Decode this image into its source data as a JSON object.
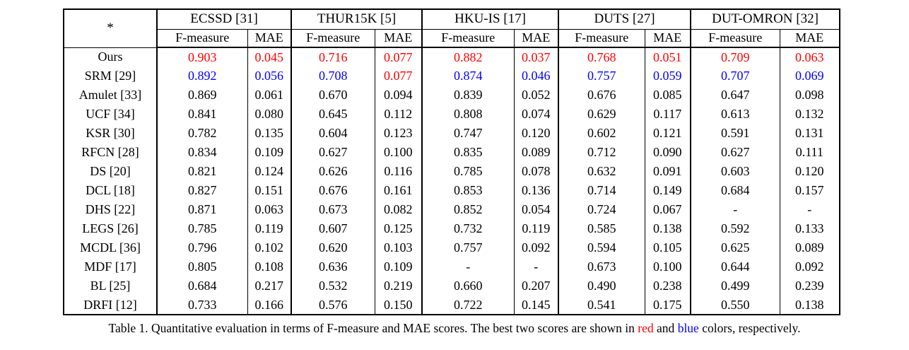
{
  "colors": {
    "best": "#ff0000",
    "second_best": "#0000ff",
    "text": "#000000",
    "background": "#ffffff"
  },
  "table": {
    "corner_label": "*",
    "dataset_headers": [
      "ECSSD [31]",
      "THUR15K [5]",
      "HKU-IS [17]",
      "DUTS [27]",
      "DUT-OMRON [32]"
    ],
    "metric_headers": [
      "F-measure",
      "MAE"
    ],
    "rows": [
      {
        "method": "Ours",
        "values": [
          "0.903",
          "0.045",
          "0.716",
          "0.077",
          "0.882",
          "0.037",
          "0.768",
          "0.051",
          "0.709",
          "0.063"
        ],
        "colors": [
          "red",
          "red",
          "red",
          "red",
          "red",
          "red",
          "red",
          "red",
          "red",
          "red"
        ]
      },
      {
        "method": "SRM [29]",
        "values": [
          "0.892",
          "0.056",
          "0.708",
          "0.077",
          "0.874",
          "0.046",
          "0.757",
          "0.059",
          "0.707",
          "0.069"
        ],
        "colors": [
          "blue",
          "blue",
          "blue",
          "red",
          "blue",
          "blue",
          "blue",
          "blue",
          "blue",
          "blue"
        ]
      },
      {
        "method": "Amulet [33]",
        "values": [
          "0.869",
          "0.061",
          "0.670",
          "0.094",
          "0.839",
          "0.052",
          "0.676",
          "0.085",
          "0.647",
          "0.098"
        ]
      },
      {
        "method": "UCF [34]",
        "values": [
          "0.841",
          "0.080",
          "0.645",
          "0.112",
          "0.808",
          "0.074",
          "0.629",
          "0.117",
          "0.613",
          "0.132"
        ]
      },
      {
        "method": "KSR [30]",
        "values": [
          "0.782",
          "0.135",
          "0.604",
          "0.123",
          "0.747",
          "0.120",
          "0.602",
          "0.121",
          "0.591",
          "0.131"
        ]
      },
      {
        "method": "RFCN [28]",
        "values": [
          "0.834",
          "0.109",
          "0.627",
          "0.100",
          "0.835",
          "0.089",
          "0.712",
          "0.090",
          "0.627",
          "0.111"
        ]
      },
      {
        "method": "DS [20]",
        "values": [
          "0.821",
          "0.124",
          "0.626",
          "0.116",
          "0.785",
          "0.078",
          "0.632",
          "0.091",
          "0.603",
          "0.120"
        ]
      },
      {
        "method": "DCL [18]",
        "values": [
          "0.827",
          "0.151",
          "0.676",
          "0.161",
          "0.853",
          "0.136",
          "0.714",
          "0.149",
          "0.684",
          "0.157"
        ]
      },
      {
        "method": "DHS [22]",
        "values": [
          "0.871",
          "0.063",
          "0.673",
          "0.082",
          "0.852",
          "0.054",
          "0.724",
          "0.067",
          "-",
          "-"
        ]
      },
      {
        "method": "LEGS [26]",
        "values": [
          "0.785",
          "0.119",
          "0.607",
          "0.125",
          "0.732",
          "0.119",
          "0.585",
          "0.138",
          "0.592",
          "0.133"
        ]
      },
      {
        "method": "MCDL [36]",
        "values": [
          "0.796",
          "0.102",
          "0.620",
          "0.103",
          "0.757",
          "0.092",
          "0.594",
          "0.105",
          "0.625",
          "0.089"
        ]
      },
      {
        "method": "MDF [17]",
        "values": [
          "0.805",
          "0.108",
          "0.636",
          "0.109",
          "-",
          "-",
          "0.673",
          "0.100",
          "0.644",
          "0.092"
        ]
      },
      {
        "method": "BL [25]",
        "values": [
          "0.684",
          "0.217",
          "0.532",
          "0.219",
          "0.660",
          "0.207",
          "0.490",
          "0.238",
          "0.499",
          "0.239"
        ]
      },
      {
        "method": "DRFI [12]",
        "values": [
          "0.733",
          "0.166",
          "0.576",
          "0.150",
          "0.722",
          "0.145",
          "0.541",
          "0.175",
          "0.550",
          "0.138"
        ]
      }
    ]
  },
  "caption": {
    "prefix": "Table 1. Quantitative evaluation in terms of F-measure and MAE scores. The best two scores are shown in ",
    "red_word": "red",
    "middle": " and ",
    "blue_word": "blue",
    "suffix": " colors, respectively."
  }
}
